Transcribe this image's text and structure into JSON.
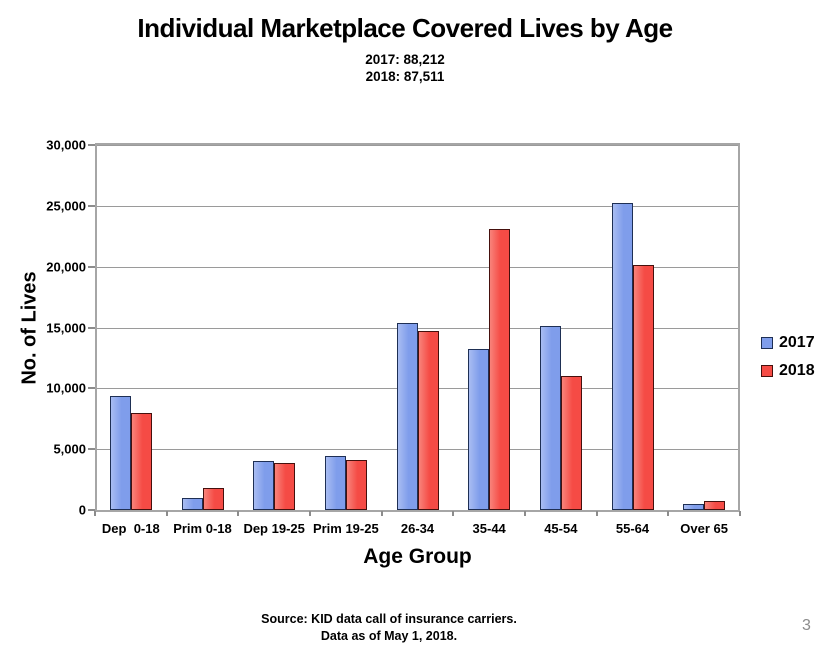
{
  "chart_data": {
    "type": "bar",
    "title": "Individual Marketplace Covered Lives by Age",
    "subtitle": [
      "2017: 88,212",
      "2018: 87,511"
    ],
    "categories": [
      "Dep  0-18",
      "Prim 0-18",
      "Dep 19-25",
      "Prim 19-25",
      "26-34",
      "35-44",
      "45-54",
      "55-64",
      "Over 65"
    ],
    "series": [
      {
        "name": "2017",
        "color": "#7F9DEB",
        "color_light": "#A9BDF2",
        "border": "#1E2F54",
        "values": [
          9400,
          950,
          4050,
          4400,
          15400,
          13200,
          15150,
          25200,
          500
        ]
      },
      {
        "name": "2018",
        "color": "#F54B45",
        "color_light": "#F8837B",
        "border": "#45100D",
        "values": [
          8000,
          1800,
          3900,
          4150,
          14700,
          23100,
          11050,
          20100,
          750
        ]
      }
    ],
    "xlabel": "Age Group",
    "ylabel": "No. of Lives",
    "ylim": [
      0,
      30000
    ],
    "yticks": [
      {
        "value": 0,
        "label": "0"
      },
      {
        "value": 5000,
        "label": "5,000"
      },
      {
        "value": 10000,
        "label": "10,000"
      },
      {
        "value": 15000,
        "label": "15,000"
      },
      {
        "value": 20000,
        "label": "20,000"
      },
      {
        "value": 25000,
        "label": "25,000"
      },
      {
        "value": 30000,
        "label": "30,000"
      }
    ],
    "grid": true,
    "legend_position": "right"
  },
  "footer": {
    "lines": [
      "Source: KID data call of insurance carriers.",
      "Data as of May 1, 2018."
    ]
  },
  "page_number": "3"
}
